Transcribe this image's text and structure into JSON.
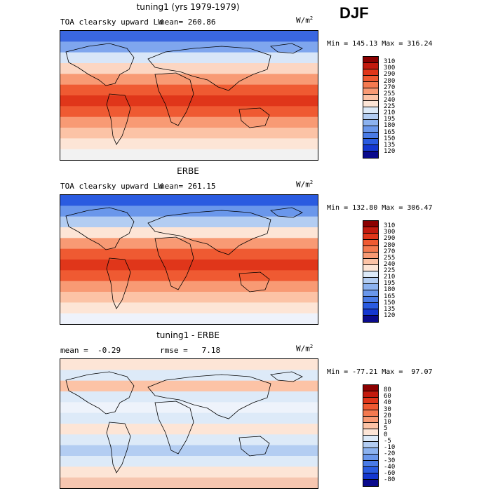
{
  "season": "DJF",
  "panels": [
    {
      "id": "model",
      "title": "tuning1 (yrs 1979-1979)",
      "field": "TOA clearsky upward LW",
      "stat_left": "mean= 260.86",
      "stat_right": "",
      "units": "W/m",
      "units_exp": "2",
      "minmax": "Min = 145.13 Max = 316.24",
      "colorbar": {
        "labels": [
          "310",
          "300",
          "290",
          "280",
          "270",
          "255",
          "240",
          "225",
          "210",
          "195",
          "180",
          "165",
          "150",
          "135",
          "120"
        ],
        "colors": [
          "#8b0000",
          "#c21a0e",
          "#e0361a",
          "#ef5a32",
          "#f47a50",
          "#f89a74",
          "#fcc3a6",
          "#fde5d6",
          "#ddeaf8",
          "#b3cdf2",
          "#8cb2ef",
          "#6a97eb",
          "#4a7be6",
          "#2a5be0",
          "#1437d0",
          "#0a0a8c"
        ]
      }
    },
    {
      "id": "obs",
      "title": "ERBE",
      "field": "TOA clearsky upward LW",
      "stat_left": "mean= 261.15",
      "stat_right": "",
      "units": "W/m",
      "units_exp": "2",
      "minmax": "Min = 132.80 Max = 306.47",
      "colorbar": {
        "labels": [
          "310",
          "300",
          "290",
          "280",
          "270",
          "255",
          "240",
          "225",
          "210",
          "195",
          "180",
          "165",
          "150",
          "135",
          "120"
        ],
        "colors": [
          "#8b0000",
          "#c21a0e",
          "#e0361a",
          "#ef5a32",
          "#f47a50",
          "#f89a74",
          "#fcc3a6",
          "#fde5d6",
          "#ddeaf8",
          "#b3cdf2",
          "#8cb2ef",
          "#6a97eb",
          "#4a7be6",
          "#2a5be0",
          "#1437d0",
          "#0a0a8c"
        ]
      }
    },
    {
      "id": "diff",
      "title": "tuning1 - ERBE",
      "field": "",
      "stat_left": "mean =  -0.29",
      "stat_right": "rmse =   7.18",
      "units": "W/m",
      "units_exp": "2",
      "minmax": "Min = -77.21 Max =  97.07",
      "colorbar": {
        "labels": [
          "80",
          "60",
          "40",
          "30",
          "20",
          "10",
          "5",
          "0",
          "-5",
          "-10",
          "-20",
          "-30",
          "-40",
          "-60",
          "-80"
        ],
        "colors": [
          "#8b0000",
          "#c21a0e",
          "#e0361a",
          "#ef5a32",
          "#f47a50",
          "#f89a74",
          "#fcc3a6",
          "#fde5d6",
          "#ddeaf8",
          "#b3cdf2",
          "#8cb2ef",
          "#6a97eb",
          "#4a7be6",
          "#2a5be0",
          "#1437d0",
          "#0a0a8c"
        ]
      }
    }
  ]
}
